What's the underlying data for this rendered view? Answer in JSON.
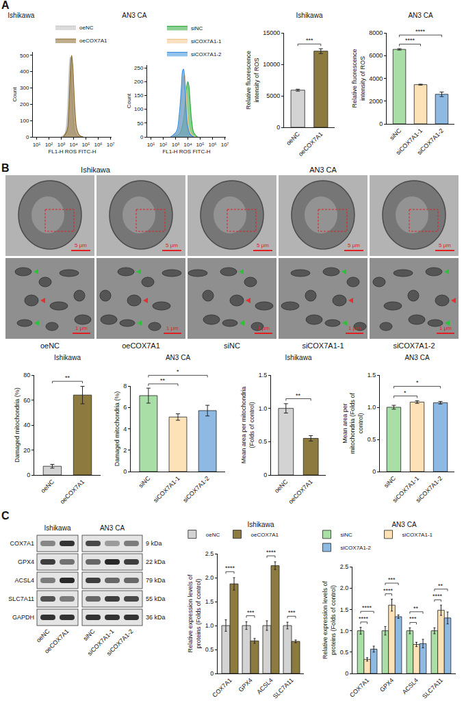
{
  "panel_letters": [
    "A",
    "B",
    "C"
  ],
  "chart_data": [
    {
      "type": "area",
      "title": "Ishikawa",
      "x_label": "FL1-H ROS FITC-H",
      "y_label": "Count",
      "log": "x",
      "grid": false,
      "legend": "top-right",
      "xlim": [
        5,
        12000000
      ],
      "xticks": [
        {
          "value": 10,
          "label": "10¹"
        },
        {
          "value": 100,
          "label": "10²"
        },
        {
          "value": 1000,
          "label": "10³"
        },
        {
          "value": 10000,
          "label": "10⁴"
        },
        {
          "value": 100000,
          "label": "10⁵"
        },
        {
          "value": 1000000,
          "label": "10⁶"
        },
        {
          "value": 10000000,
          "label": "10⁷"
        }
      ],
      "ylim": [
        0,
        520
      ],
      "yticks": [
        0,
        100,
        200,
        300,
        400,
        500
      ],
      "series": [
        {
          "name": "oeNC",
          "color": "#bdbdbd",
          "x": [
            1000,
            2000,
            3000,
            4000,
            5000,
            5600,
            6500,
            8000,
            10000,
            13000,
            20000,
            40000
          ],
          "values": [
            0,
            20,
            120,
            330,
            470,
            490,
            420,
            250,
            100,
            30,
            5,
            0
          ]
        },
        {
          "name": "oeCOX7A1",
          "color": "#8a6a2e",
          "x": [
            1500,
            3000,
            4000,
            5000,
            6000,
            7000,
            8500,
            10000,
            13000,
            18000,
            30000,
            60000
          ],
          "values": [
            0,
            40,
            150,
            320,
            450,
            500,
            440,
            330,
            160,
            50,
            10,
            0
          ]
        }
      ]
    },
    {
      "type": "area",
      "title": "AN3 CA",
      "x_label": "FL1-H ROS FITC-H",
      "y_label": "Count",
      "log": "x",
      "grid": false,
      "legend": "top-right",
      "xlim": [
        5,
        12000000
      ],
      "xticks": [
        {
          "value": 10,
          "label": "10¹"
        },
        {
          "value": 100,
          "label": "10²"
        },
        {
          "value": 1000,
          "label": "10³"
        },
        {
          "value": 10000,
          "label": "10⁴"
        },
        {
          "value": 100000,
          "label": "10⁵"
        },
        {
          "value": 1000000,
          "label": "10⁶"
        },
        {
          "value": 10000000,
          "label": "10⁷"
        }
      ],
      "ylim": [
        0,
        260
      ],
      "yticks": [
        0,
        50,
        100,
        150,
        200,
        250
      ],
      "series": [
        {
          "name": "siNC",
          "color": "#2eaa3a",
          "x": [
            600,
            2000,
            4000,
            6000,
            8000,
            10000,
            12000,
            15000,
            20000,
            30000,
            60000
          ],
          "values": [
            0,
            10,
            50,
            120,
            180,
            200,
            185,
            130,
            60,
            15,
            0
          ]
        },
        {
          "name": "siCOX7A1-1",
          "color": "#f2c48d",
          "x": [
            500,
            1500,
            2500,
            3500,
            4500,
            5500,
            7000,
            9000,
            12000,
            20000,
            40000
          ],
          "values": [
            0,
            15,
            70,
            160,
            215,
            225,
            170,
            90,
            35,
            8,
            0
          ]
        },
        {
          "name": "siCOX7A1-2",
          "color": "#3b8fdc",
          "x": [
            400,
            1200,
            2000,
            3000,
            3800,
            4500,
            5500,
            7000,
            9000,
            15000,
            30000
          ],
          "values": [
            0,
            20,
            80,
            180,
            240,
            245,
            200,
            110,
            45,
            10,
            0
          ]
        }
      ]
    },
    {
      "type": "bar",
      "title": "Ishikawa",
      "y_label": "Relative fluorescence intensity of ROS",
      "grid": false,
      "categories": [
        "oeNC",
        "oeCOX7A1"
      ],
      "values": [
        5900,
        12100
      ],
      "errors": [
        150,
        380
      ],
      "colors": [
        "#d3d3d3",
        "#8c7a3e"
      ],
      "ylim": [
        0,
        15000
      ],
      "yticks": [
        0,
        5000,
        10000,
        15000
      ],
      "significance": [
        {
          "from": "oeNC",
          "to": "oeCOX7A1",
          "label": "***"
        }
      ]
    },
    {
      "type": "bar",
      "title": "AN3 CA",
      "y_label": "Relative fluorescence intensity of ROS",
      "grid": false,
      "categories": [
        "siNC",
        "siCOX7A1-1",
        "siCOX7A1-2"
      ],
      "values": [
        6550,
        3450,
        2600
      ],
      "errors": [
        60,
        40,
        200
      ],
      "colors": [
        "#a9dfa6",
        "#fde2b8",
        "#8db9e3"
      ],
      "ylim": [
        0,
        8000
      ],
      "yticks": [
        0,
        2000,
        4000,
        6000,
        8000
      ],
      "significance": [
        {
          "from": "siNC",
          "to": "siCOX7A1-1",
          "label": "****"
        },
        {
          "from": "siNC",
          "to": "siCOX7A1-2",
          "label": "****"
        }
      ]
    },
    {
      "type": "bar",
      "title": "Ishikawa",
      "y_label": "Damaged mitochondria (%)",
      "grid": false,
      "categories": [
        "oeNC",
        "oeCOX7A1"
      ],
      "values": [
        7,
        64
      ],
      "errors": [
        1.5,
        7
      ],
      "colors": [
        "#d3d3d3",
        "#8c7a3e"
      ],
      "ylim": [
        0,
        80
      ],
      "yticks": [
        0,
        20,
        40,
        60,
        80
      ],
      "significance": [
        {
          "from": "oeNC",
          "to": "oeCOX7A1",
          "label": "**"
        }
      ]
    },
    {
      "type": "bar",
      "title": "AN3 CA",
      "y_label": "Damaged mitochondria (%)",
      "grid": false,
      "categories": [
        "siNC",
        "siCOX7A1-1",
        "siCOX7A1-2"
      ],
      "values": [
        7.1,
        5.1,
        5.7
      ],
      "errors": [
        0.7,
        0.3,
        0.5
      ],
      "colors": [
        "#a9dfa6",
        "#fde2b8",
        "#8db9e3"
      ],
      "ylim": [
        0,
        8
      ],
      "yticks": [
        0,
        2,
        4,
        6,
        8
      ],
      "significance": [
        {
          "from": "siNC",
          "to": "siCOX7A1-1",
          "label": "**"
        },
        {
          "from": "siNC",
          "to": "siCOX7A1-2",
          "label": "*"
        }
      ]
    },
    {
      "type": "bar",
      "title": "Ishikawa",
      "y_label": "Mean area per mitochondria (Folds of control)",
      "grid": false,
      "categories": [
        "oeNC",
        "oeCOX7A1"
      ],
      "values": [
        1.0,
        0.55
      ],
      "errors": [
        0.07,
        0.04
      ],
      "colors": [
        "#d3d3d3",
        "#8c7a3e"
      ],
      "ylim": [
        0,
        1.5
      ],
      "yticks": [
        0,
        0.5,
        {
          "value": 1,
          "label": "1.0"
        },
        1.5
      ],
      "significance": [
        {
          "from": "oeNC",
          "to": "oeCOX7A1",
          "label": "**"
        }
      ]
    },
    {
      "type": "bar",
      "title": "AN3 CA",
      "y_label": "Mean area per mitochondria (Folds of control)",
      "grid": false,
      "categories": [
        "siNC",
        "siCOX7A1-1",
        "siCOX7A1-2"
      ],
      "values": [
        1.0,
        1.08,
        1.07
      ],
      "errors": [
        0.03,
        0.02,
        0.02
      ],
      "colors": [
        "#a9dfa6",
        "#fde2b8",
        "#8db9e3"
      ],
      "ylim": [
        0,
        1.5
      ],
      "yticks": [
        0,
        0.5,
        {
          "value": 1,
          "label": "1.0"
        },
        1.5
      ],
      "significance": [
        {
          "from": "siNC",
          "to": "siCOX7A1-1",
          "label": "*"
        },
        {
          "from": "siNC",
          "to": "siCOX7A1-2",
          "label": "*"
        }
      ]
    },
    {
      "type": "bar",
      "title": "Ishikawa",
      "y_label": "Relative expression levels of proteins (Folds of control)",
      "grid": false,
      "legend": "top-left",
      "categories": [
        "COX7A1",
        "GPX4",
        "ACSL4",
        "SLC7A11"
      ],
      "series": [
        {
          "name": "oeNC",
          "color": "#d3d3d3",
          "values": [
            1.0,
            1.0,
            1.0,
            1.0
          ],
          "errors": [
            0.12,
            0.08,
            0.1,
            0.07
          ]
        },
        {
          "name": "oeCOX7A1",
          "color": "#8c7a3e",
          "values": [
            1.87,
            0.68,
            2.25,
            0.67
          ],
          "errors": [
            0.13,
            0.05,
            0.08,
            0.03
          ]
        }
      ],
      "ylim": [
        0,
        2.5
      ],
      "yticks": [
        0,
        0.5,
        {
          "value": 1,
          "label": "1.0"
        },
        1.5,
        {
          "value": 2,
          "label": "2.0"
        },
        2.5
      ],
      "significance": [
        [
          {
            "from": "oeNC",
            "to": "oeCOX7A1",
            "label": "****"
          }
        ],
        [
          {
            "from": "oeNC",
            "to": "oeCOX7A1",
            "label": "***"
          }
        ],
        [
          {
            "from": "oeNC",
            "to": "oeCOX7A1",
            "label": "****"
          }
        ],
        [
          {
            "from": "oeNC",
            "to": "oeCOX7A1",
            "label": "***"
          }
        ]
      ]
    },
    {
      "type": "bar",
      "title": "AN3 CA",
      "y_label": "Relative expression levels of proteins (Folds of control)",
      "grid": false,
      "legend": "top-left",
      "categories": [
        "COX7A1",
        "GPX4",
        "ACSL4",
        "SLC7A11"
      ],
      "series": [
        {
          "name": "siNC",
          "color": "#a9dfa6",
          "values": [
            1.0,
            1.0,
            1.0,
            1.0
          ],
          "errors": [
            0.08,
            0.1,
            0.07,
            0.07
          ]
        },
        {
          "name": "siCOX7A1-1",
          "color": "#fde2b8",
          "values": [
            0.33,
            1.6,
            0.68,
            1.48
          ],
          "errors": [
            0.04,
            0.14,
            0.05,
            0.12
          ]
        },
        {
          "name": "siCOX7A1-2",
          "color": "#8db9e3",
          "values": [
            0.57,
            1.33,
            0.7,
            1.3
          ],
          "errors": [
            0.07,
            0.04,
            0.1,
            0.14
          ]
        }
      ],
      "ylim": [
        0,
        2.5
      ],
      "yticks": [
        0,
        0.5,
        {
          "value": 1,
          "label": "1.0"
        },
        1.5,
        {
          "value": 2,
          "label": "2.0"
        },
        2.5
      ],
      "significance": [
        [
          {
            "from": "siNC",
            "to": "siCOX7A1-1",
            "label": "****"
          },
          {
            "from": "siNC",
            "to": "siCOX7A1-2",
            "label": "****"
          }
        ],
        [
          {
            "from": "siNC",
            "to": "siCOX7A1-1",
            "label": "****"
          },
          {
            "from": "siNC",
            "to": "siCOX7A1-2",
            "label": "***"
          }
        ],
        [
          {
            "from": "siNC",
            "to": "siCOX7A1-1",
            "label": "***"
          },
          {
            "from": "siNC",
            "to": "siCOX7A1-2",
            "label": "**"
          }
        ],
        [
          {
            "from": "siNC",
            "to": "siCOX7A1-1",
            "label": "****"
          },
          {
            "from": "siNC",
            "to": "siCOX7A1-2",
            "label": "**"
          }
        ]
      ]
    }
  ],
  "images": {
    "groups": [
      {
        "label": "Ishikawa",
        "columns": [
          "oeNC",
          "oeCOX7A1"
        ]
      },
      {
        "label": "AN3 CA",
        "columns": [
          "siNC",
          "siCOX7A1-1",
          "siCOX7A1-2"
        ]
      }
    ],
    "scale_overview": "5 μm",
    "scale_zoom": "1 μm"
  },
  "blot": {
    "groups": [
      {
        "label": "Ishikawa",
        "lanes": [
          "oeNC",
          "oeCOX7A1"
        ]
      },
      {
        "label": "AN3 CA",
        "lanes": [
          "siNC",
          "siCOX7A1-1",
          "siCOX7A1-2"
        ]
      }
    ],
    "rows": [
      {
        "protein": "COX7A1",
        "size": "9 kDa",
        "intensity": [
          0.45,
          0.85,
          0.75,
          0.35,
          0.5
        ]
      },
      {
        "protein": "GPX4",
        "size": "22 kDa",
        "intensity": [
          0.8,
          0.55,
          0.6,
          0.9,
          0.8
        ]
      },
      {
        "protein": "ACSL4",
        "size": "79 kDa",
        "intensity": [
          0.5,
          0.9,
          0.8,
          0.6,
          0.6
        ]
      },
      {
        "protein": "SLC7A11",
        "size": "55 kDa",
        "intensity": [
          0.7,
          0.5,
          0.6,
          0.8,
          0.75
        ]
      },
      {
        "protein": "GAPDH",
        "size": "36 kDa",
        "intensity": [
          0.85,
          0.85,
          0.85,
          0.85,
          0.85
        ]
      }
    ]
  }
}
